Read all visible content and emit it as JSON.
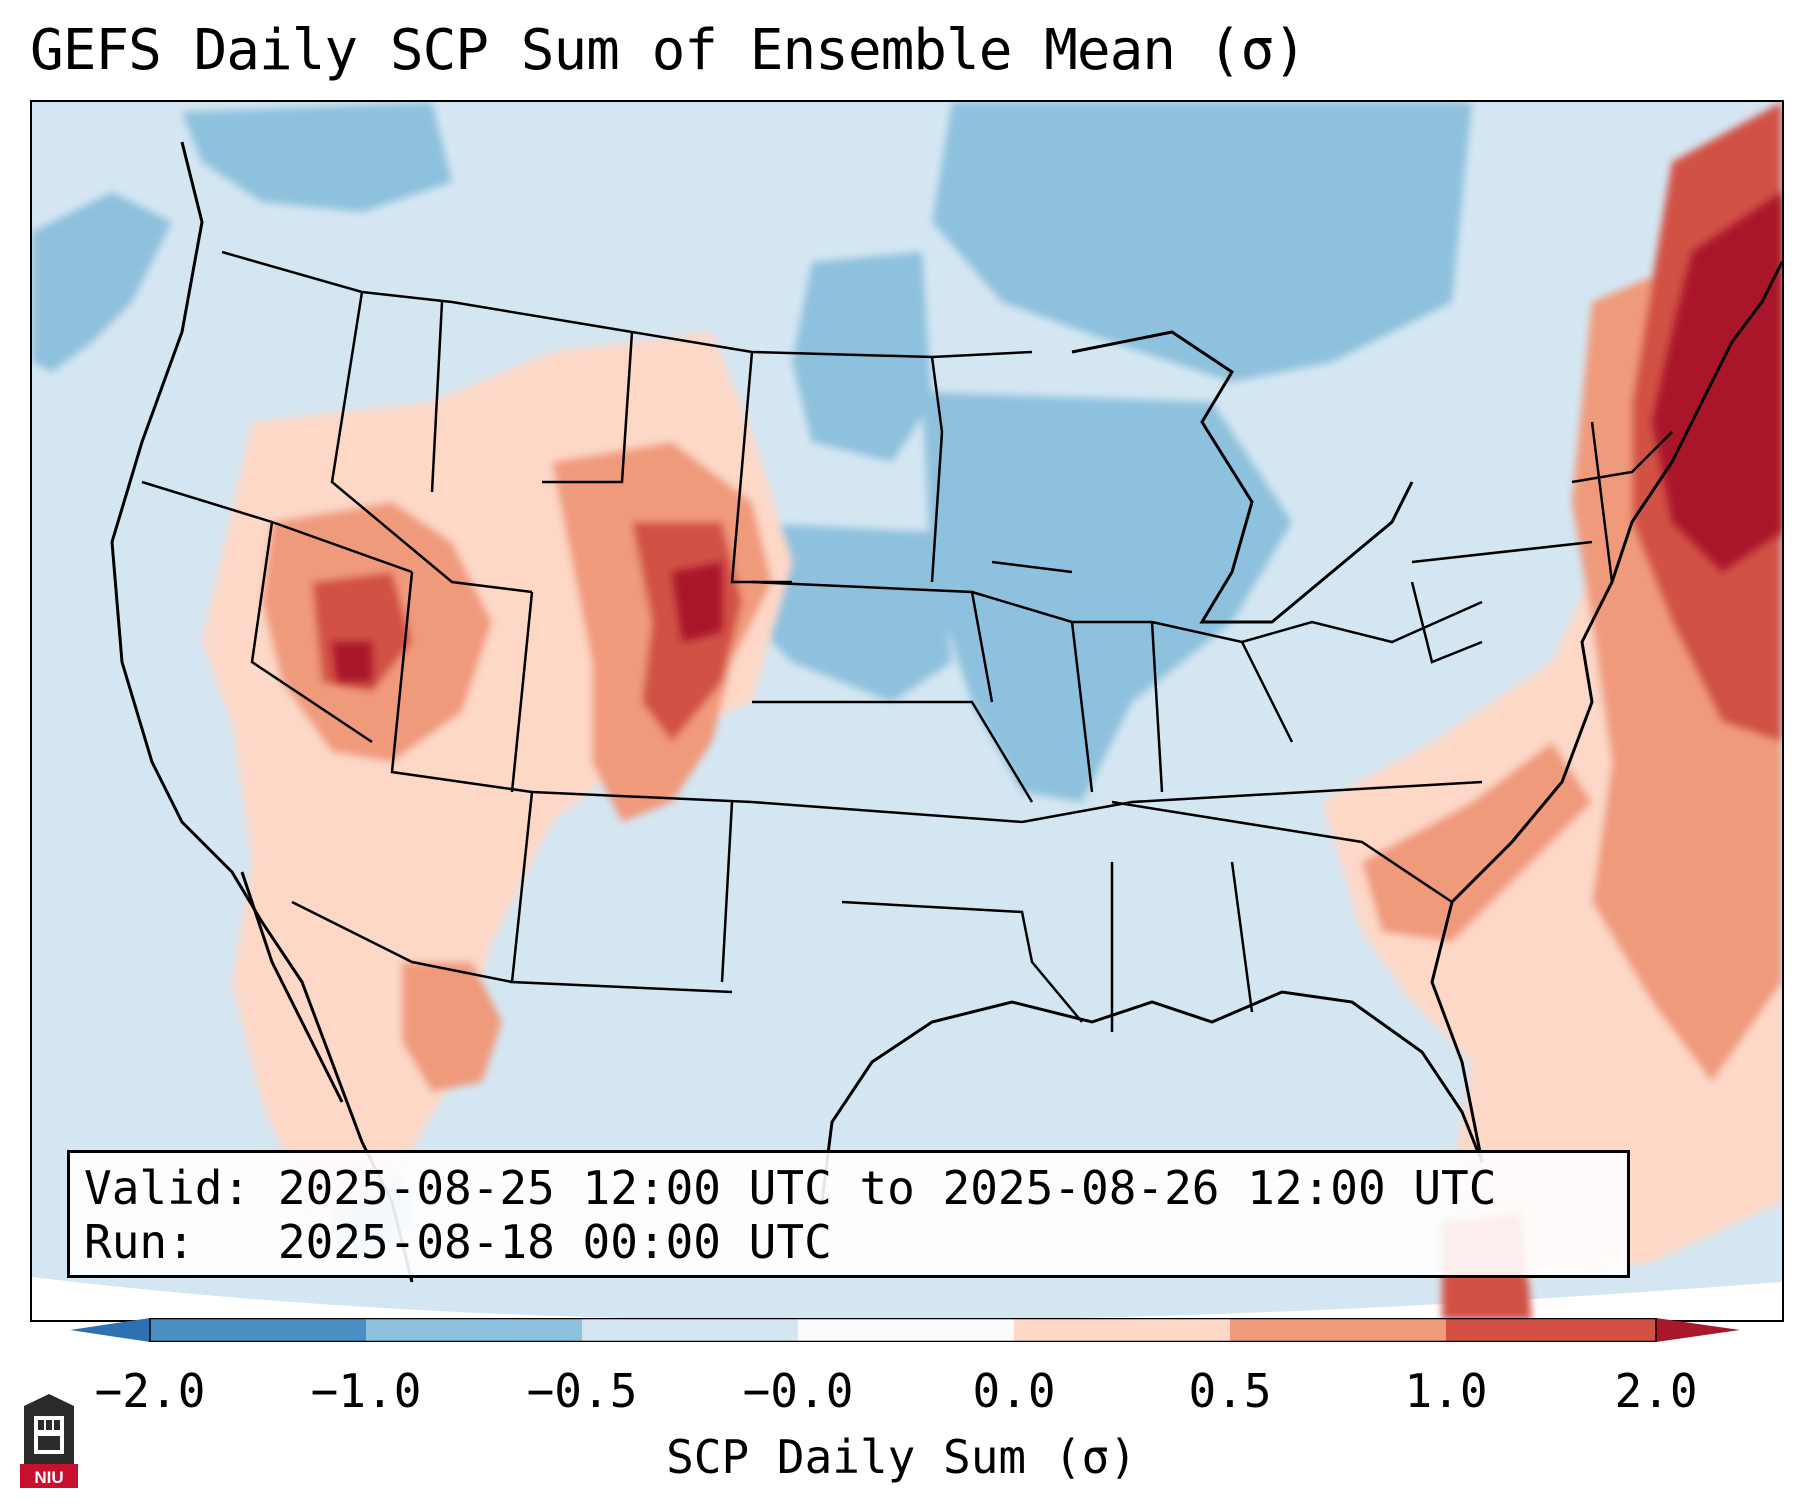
{
  "title": "GEFS Daily SCP Sum of Ensemble Mean (σ)",
  "info": {
    "valid_label": "Valid:",
    "valid_value": "2025-08-25 12:00 UTC to 2025-08-26 12:00 UTC",
    "run_label": "Run:",
    "run_value": "2025-08-18 00:00 UTC"
  },
  "colorbar": {
    "label": "SCP Daily Sum (σ)",
    "ticks": [
      "−2.0",
      "−1.0",
      "−0.5",
      "−0.0",
      "0.0",
      "0.5",
      "1.0",
      "2.0"
    ],
    "colors": [
      "#4a8fc4",
      "#8ec1dd",
      "#d4e6f2",
      "#fbfbfd",
      "#fdd8c7",
      "#f09a7c",
      "#d25144",
      "#a9172a"
    ]
  },
  "logo_text": "NIU",
  "anomaly_regions": [
    "Nevada/Utah high",
    "Colorado/Wyoming high",
    "Arizona/Sonora high",
    "Carolinas moderate",
    "New England/Atlantic high",
    "Great Lakes/Midwest low"
  ]
}
